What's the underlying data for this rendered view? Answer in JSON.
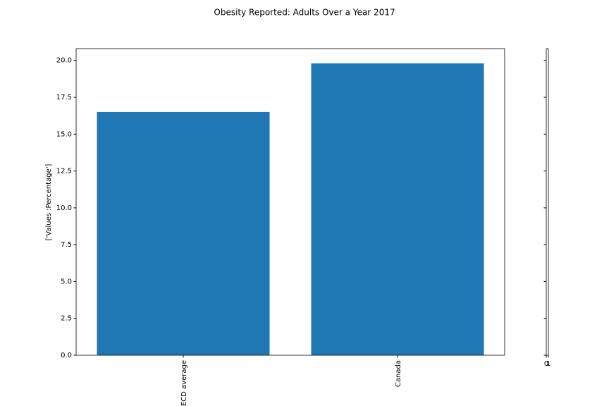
{
  "chart_data": [
    {
      "type": "bar",
      "title": "Obesity Reported: Adults Over a Year 2017",
      "ylabel": "['Values :Percentage']",
      "categories": [
        "OECD average",
        "Canada"
      ],
      "values": [
        16.5,
        19.8
      ],
      "color": "#1f77b4",
      "ylim": [
        0,
        20.8
      ],
      "yticks": [
        {
          "value": 0,
          "label": "0.0"
        },
        2.5,
        {
          "value": 5,
          "label": "5.0"
        },
        7.5,
        {
          "value": 10,
          "label": "10.0"
        },
        12.5,
        {
          "value": 15,
          "label": "15.0"
        },
        17.5,
        {
          "value": 20,
          "label": "20.0"
        }
      ]
    },
    {
      "type": "axes",
      "xlim": [
        0,
        1
      ],
      "xticks": [
        0,
        1
      ],
      "ylim": [
        0,
        20.8
      ],
      "yticks": [
        0,
        2.5,
        5,
        7.5,
        10,
        12.5,
        15,
        17.5,
        20
      ]
    }
  ]
}
